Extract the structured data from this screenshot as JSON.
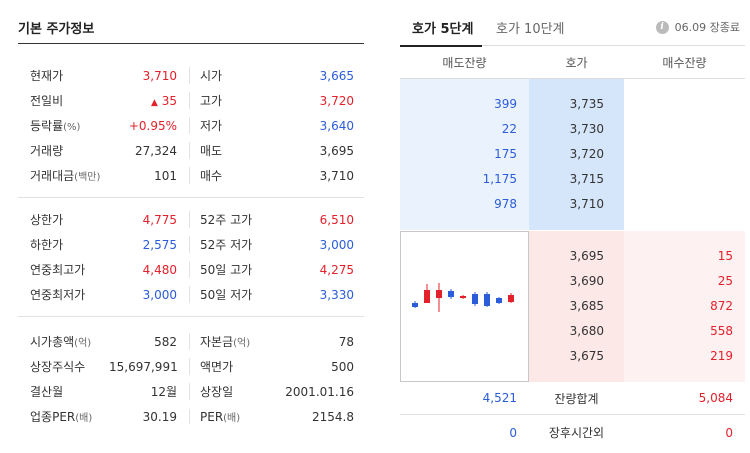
{
  "left_title": "기본 주가정보",
  "groups": [
    [
      {
        "l": "현재가",
        "lu": "",
        "v": "3,710",
        "vc": "red",
        "l2": "시가",
        "l2u": "",
        "v2": "3,665",
        "v2c": "blue"
      },
      {
        "l": "전일비",
        "lu": "",
        "v": "35",
        "vc": "red",
        "tri": "▲",
        "l2": "고가",
        "l2u": "",
        "v2": "3,720",
        "v2c": "red"
      },
      {
        "l": "등락률",
        "lu": "(%)",
        "v": "+0.95%",
        "vc": "red",
        "l2": "저가",
        "l2u": "",
        "v2": "3,640",
        "v2c": "blue"
      },
      {
        "l": "거래량",
        "lu": "",
        "v": "27,324",
        "vc": "black",
        "l2": "매도",
        "l2u": "",
        "v2": "3,695",
        "v2c": "black"
      },
      {
        "l": "거래대금",
        "lu": "(백만)",
        "v": "101",
        "vc": "black",
        "l2": "매수",
        "l2u": "",
        "v2": "3,710",
        "v2c": "black"
      }
    ],
    [
      {
        "l": "상한가",
        "lu": "",
        "v": "4,775",
        "vc": "red",
        "l2": "52주 고가",
        "l2u": "",
        "v2": "6,510",
        "v2c": "red"
      },
      {
        "l": "하한가",
        "lu": "",
        "v": "2,575",
        "vc": "blue",
        "l2": "52주 저가",
        "l2u": "",
        "v2": "3,000",
        "v2c": "blue"
      },
      {
        "l": "연중최고가",
        "lu": "",
        "v": "4,480",
        "vc": "red",
        "l2": "50일 고가",
        "l2u": "",
        "v2": "4,275",
        "v2c": "red"
      },
      {
        "l": "연중최저가",
        "lu": "",
        "v": "3,000",
        "vc": "blue",
        "l2": "50일 저가",
        "l2u": "",
        "v2": "3,330",
        "v2c": "blue"
      }
    ],
    [
      {
        "l": "시가총액",
        "lu": "(억)",
        "v": "582",
        "vc": "black",
        "l2": "자본금",
        "l2u": "(억)",
        "v2": "78",
        "v2c": "black"
      },
      {
        "l": "상장주식수",
        "lu": "",
        "v": "15,697,991",
        "vc": "black",
        "l2": "액면가",
        "l2u": "",
        "v2": "500",
        "v2c": "black"
      },
      {
        "l": "결산월",
        "lu": "",
        "v": "12월",
        "vc": "black",
        "l2": "상장일",
        "l2u": "",
        "v2": "2001.01.16",
        "v2c": "black"
      },
      {
        "l": "업종PER",
        "lu": "(배)",
        "v": "30.19",
        "vc": "black",
        "l2": "PER",
        "l2u": "(배)",
        "v2": "2154.8",
        "v2c": "black"
      }
    ]
  ],
  "tabs": {
    "t1": "호가 5단계",
    "t2": "호가 10단계"
  },
  "time_status": "06.09 장종료",
  "ob_headers": {
    "ask": "매도잔량",
    "price": "호가",
    "bid": "매수잔량"
  },
  "asks": [
    {
      "qty": "399",
      "price": "3,735"
    },
    {
      "qty": "22",
      "price": "3,730"
    },
    {
      "qty": "175",
      "price": "3,720"
    },
    {
      "qty": "1,175",
      "price": "3,715"
    },
    {
      "qty": "978",
      "price": "3,710"
    }
  ],
  "bids": [
    {
      "price": "3,695",
      "qty": "15"
    },
    {
      "price": "3,690",
      "qty": "25"
    },
    {
      "price": "3,685",
      "qty": "872"
    },
    {
      "price": "3,680",
      "qty": "558"
    },
    {
      "price": "3,675",
      "qty": "219"
    }
  ],
  "totals": {
    "ask": "4,521",
    "label": "잔량합계",
    "bid": "5,084"
  },
  "after_hours": {
    "ask": "0",
    "label": "장후시간외",
    "bid": "0"
  },
  "colors": {
    "up": "#e3212b",
    "down": "#2b5cd9"
  }
}
